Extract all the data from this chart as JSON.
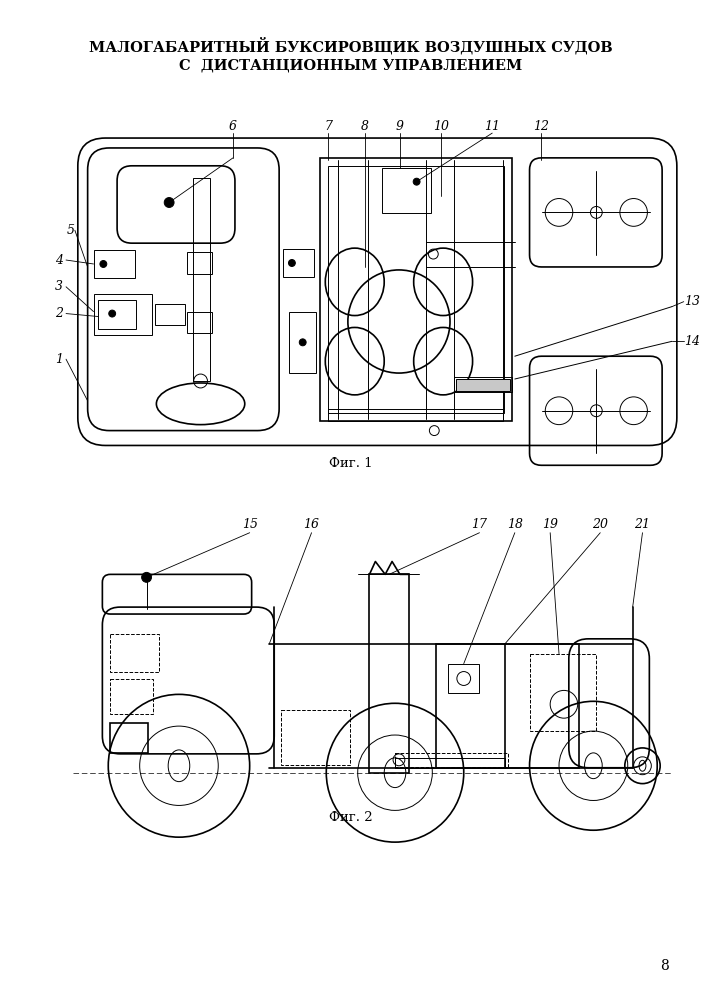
{
  "title_line1": "МАЛОГАБАРИТНЫЙ БУКСИРОВЩИК ВОЗДУШНЫХ СУДОВ",
  "title_line2": "С  ДИСТАНЦИОННЫМ УПРАВЛЕНИЕМ",
  "fig1_caption": "Фиг. 1",
  "fig2_caption": "Фиг. 2",
  "page_number": "8",
  "line_color": "#000000",
  "bg_color": "#ffffff"
}
